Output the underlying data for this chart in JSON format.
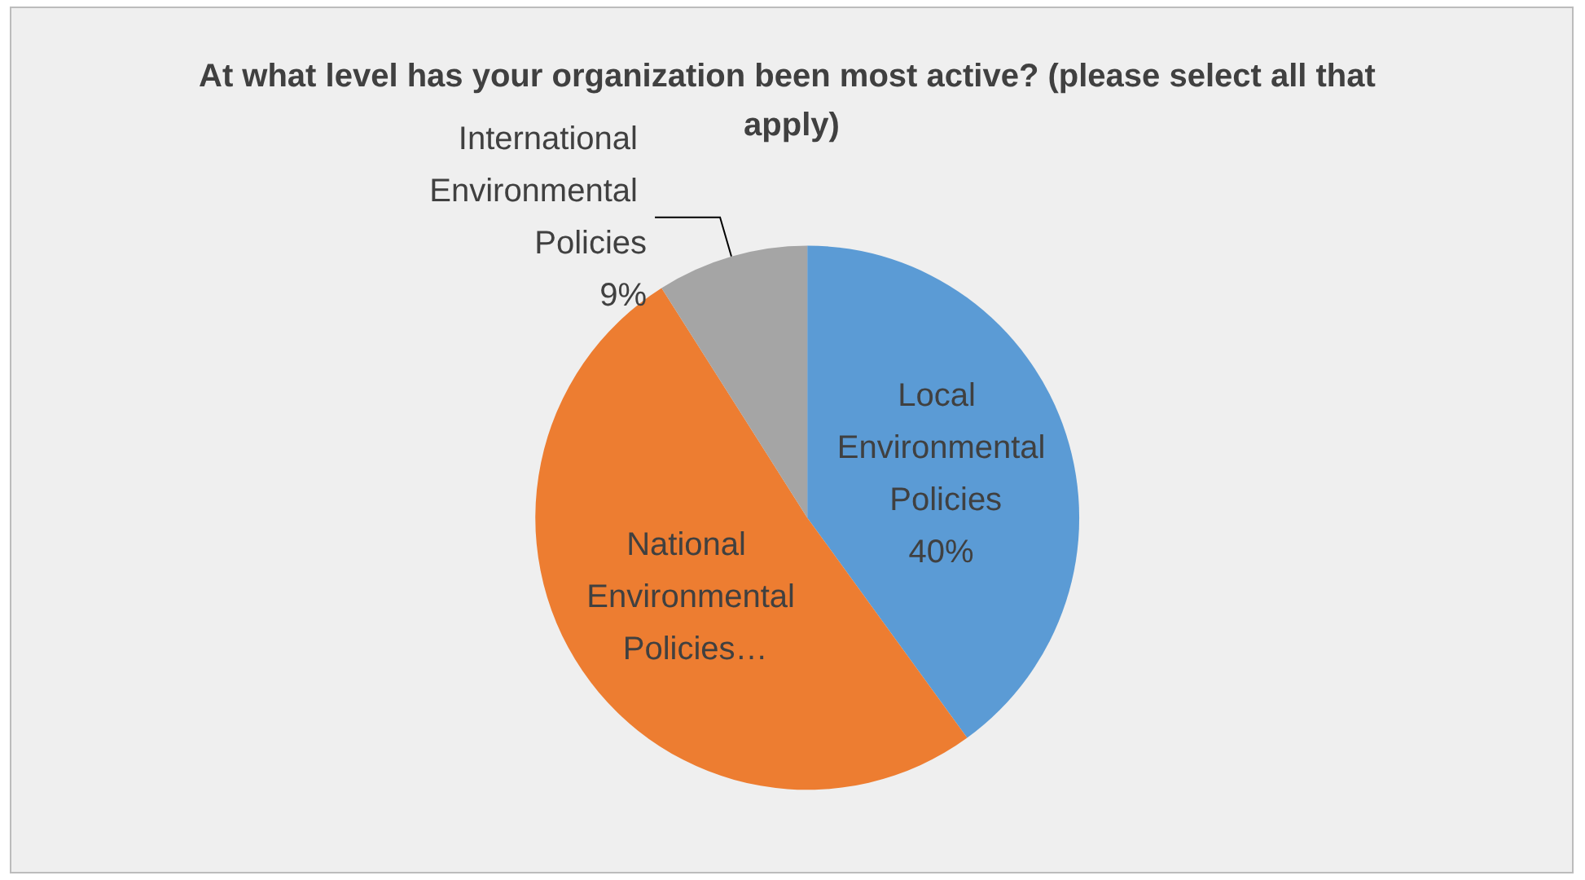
{
  "chart_data": {
    "type": "pie",
    "title": "At what level has your organization been most active? (please select all that apply)",
    "categories": [
      "Local Environmental Policies",
      "National Environmental Policies…",
      "International Environmental Policies"
    ],
    "values": [
      40,
      51,
      9
    ],
    "value_labels": [
      "40%",
      null,
      "9%"
    ],
    "colors": [
      "#5b9bd5",
      "#ed7d31",
      "#a5a5a5"
    ],
    "legend": false
  }
}
